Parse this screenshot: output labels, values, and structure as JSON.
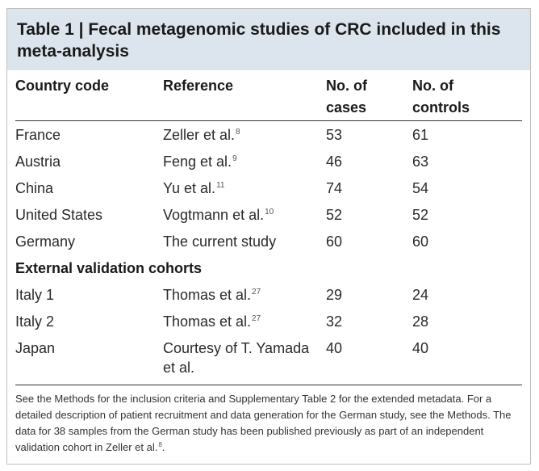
{
  "title": "Table 1 | Fecal metagenomic studies of CRC included in this meta-analysis",
  "columns": {
    "country": "Country code",
    "reference": "Reference",
    "cases": "No. of cases",
    "controls": "No. of controls"
  },
  "rows": [
    {
      "country": "France",
      "reference": "Zeller et al.",
      "ref_sup": "8",
      "cases": "53",
      "controls": "61"
    },
    {
      "country": "Austria",
      "reference": "Feng et al.",
      "ref_sup": "9",
      "cases": "46",
      "controls": "63"
    },
    {
      "country": "China",
      "reference": "Yu et al.",
      "ref_sup": "11",
      "cases": "74",
      "controls": "54"
    },
    {
      "country": "United States",
      "reference": "Vogtmann et al.",
      "ref_sup": "10",
      "cases": "52",
      "controls": "52"
    },
    {
      "country": "Germany",
      "reference": "The current study",
      "ref_sup": "",
      "cases": "60",
      "controls": "60"
    }
  ],
  "subheading": "External validation cohorts",
  "validation_rows": [
    {
      "country": "Italy 1",
      "reference": "Thomas et al.",
      "ref_sup": "27",
      "cases": "29",
      "controls": "24"
    },
    {
      "country": "Italy 2",
      "reference": "Thomas et al.",
      "ref_sup": "27",
      "cases": "32",
      "controls": "28"
    },
    {
      "country": "Japan",
      "reference": "Courtesy of T. Yamada et al.",
      "ref_sup": "",
      "cases": "40",
      "controls": "40"
    }
  ],
  "footnote": {
    "text": "See the Methods for the inclusion criteria and Supplementary Table 2 for the extended metadata. For a detailed description of patient recruitment and data generation for the German study, see the Methods. The data for 38 samples from the German study has been published previously as part of an independent validation cohort in Zeller et al.",
    "sup": "8",
    "end": "."
  }
}
